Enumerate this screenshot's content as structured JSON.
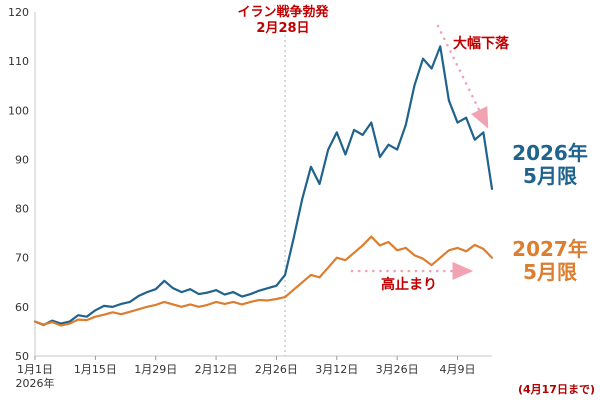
{
  "chart_data": {
    "type": "line",
    "title": "",
    "x_range_days": [
      0,
      106
    ],
    "ylim": [
      50,
      120
    ],
    "y_ticks": [
      50,
      60,
      70,
      80,
      90,
      100,
      110,
      120
    ],
    "x_tick_days": [
      0,
      14,
      28,
      42,
      56,
      70,
      84,
      98
    ],
    "x_tick_labels": [
      "1月1日",
      "1月15日",
      "1月29日",
      "2月12日",
      "2月26日",
      "3月12日",
      "3月26日",
      "4月9日"
    ],
    "x_axis_year_label": "2026年",
    "event_line_day": 58,
    "x_days": [
      0,
      2,
      4,
      6,
      8,
      10,
      12,
      14,
      16,
      18,
      20,
      22,
      24,
      26,
      28,
      30,
      32,
      34,
      36,
      38,
      40,
      42,
      44,
      46,
      48,
      50,
      52,
      54,
      56,
      58,
      60,
      62,
      64,
      66,
      68,
      70,
      72,
      74,
      76,
      78,
      80,
      82,
      84,
      86,
      88,
      90,
      92,
      94,
      96,
      98,
      100,
      102,
      104,
      106
    ],
    "series": [
      {
        "name": "2026年5月限",
        "label_line1": "2026年",
        "label_line2": "5月限",
        "color": "#20638C",
        "values": [
          57,
          56.3,
          57.2,
          56.6,
          57,
          58.3,
          58,
          59.3,
          60.2,
          60,
          60.6,
          61,
          62.2,
          63,
          63.6,
          65.3,
          63.8,
          63,
          63.6,
          62.6,
          62.9,
          63.4,
          62.5,
          63,
          62.1,
          62.6,
          63.3,
          63.8,
          64.3,
          66.5,
          74,
          82,
          88.5,
          85,
          92,
          95.5,
          91,
          96,
          95,
          97.5,
          90.5,
          93,
          92,
          97,
          105,
          110.5,
          108.5,
          113,
          102,
          97.5,
          98.5,
          94,
          95.5,
          84
        ]
      },
      {
        "name": "2027年5月限",
        "label_line1": "2027年",
        "label_line2": "5月限",
        "color": "#DC7E2F",
        "values": [
          57,
          56.4,
          56.9,
          56.2,
          56.6,
          57.4,
          57.3,
          58,
          58.4,
          58.9,
          58.5,
          59,
          59.5,
          60,
          60.4,
          61,
          60.5,
          60,
          60.5,
          60,
          60.4,
          61,
          60.6,
          61,
          60.5,
          61,
          61.4,
          61.3,
          61.6,
          62,
          63.5,
          65,
          66.5,
          66,
          68,
          70,
          69.5,
          71,
          72.5,
          74.3,
          72.5,
          73.2,
          71.5,
          72,
          70.5,
          69.8,
          68.5,
          70,
          71.5,
          72,
          71.3,
          72.6,
          71.8,
          70
        ]
      }
    ],
    "legend_position": "right",
    "grid": false
  },
  "annotations": {
    "event_line1": "イラン戦争勃発",
    "event_line2": "2月28日",
    "drop": "大幅下落",
    "high": "高止まり",
    "footnote": "(4月17日まで)",
    "text_color": "#C00000",
    "arrow_color": "#F2A3B3",
    "footnote_color": "#B00000",
    "axis_text_color": "#333333"
  }
}
